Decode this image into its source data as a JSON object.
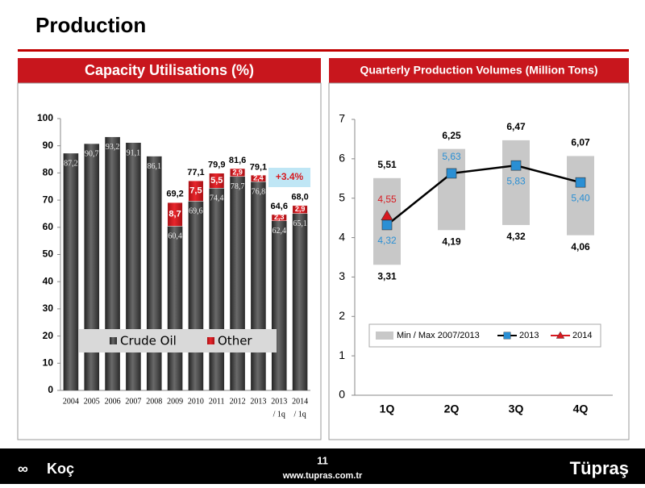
{
  "title": "Production",
  "footer": {
    "page": "11",
    "url": "www.tupras.com.tr",
    "left_logo": "Koç",
    "right_logo": "Tüpraş"
  },
  "chart_data": [
    {
      "type": "bar",
      "stacked": true,
      "title": "Capacity Utilisations (%)",
      "categories": [
        "2004",
        "2005",
        "2006",
        "2007",
        "2008",
        "2009",
        "2010",
        "2011",
        "2012",
        "2013",
        "2013",
        "2014"
      ],
      "category_notes": [
        null,
        null,
        null,
        null,
        null,
        null,
        null,
        null,
        null,
        null,
        "/ 1q",
        "/ 1q"
      ],
      "series": [
        {
          "name": "Crude Oil",
          "color": "#3a3a3a",
          "values": [
            87.2,
            90.7,
            93.2,
            91.1,
            86.1,
            60.4,
            69.6,
            74.4,
            78.7,
            76.8,
            62.4,
            65.1
          ],
          "value_labels": [
            "87,2",
            "90,7",
            "93,2",
            "91,1",
            "86,1",
            "60,4",
            "69,6",
            "74,4",
            "78,7",
            "76,8",
            "62,4",
            "65,1"
          ]
        },
        {
          "name": "Other",
          "color": "#d71920",
          "values": [
            null,
            null,
            null,
            null,
            null,
            8.7,
            7.5,
            5.5,
            2.9,
            2.4,
            2.3,
            2.9
          ],
          "value_labels": [
            null,
            null,
            null,
            null,
            null,
            "8,7",
            "7,5",
            "5,5",
            "2,9",
            "2,4",
            "2,3",
            "2,9"
          ]
        }
      ],
      "totals": {
        "values": [
          null,
          null,
          null,
          null,
          null,
          69.2,
          77.1,
          79.9,
          81.6,
          79.1,
          64.6,
          68.0
        ],
        "value_labels": [
          null,
          null,
          null,
          null,
          null,
          "69,2",
          "77,1",
          "79,9",
          "81,6",
          "79,1",
          "64,6",
          "68,0"
        ]
      },
      "annotation": "+3.4%",
      "ylim": [
        0,
        100
      ],
      "yticks": [
        0,
        10,
        20,
        30,
        40,
        50,
        60,
        70,
        80,
        90,
        100
      ],
      "grid": false,
      "legend": "lower left"
    },
    {
      "type": "line",
      "title": "Quarterly Production Volumes (Million Tons)",
      "categories": [
        "1Q",
        "2Q",
        "3Q",
        "4Q"
      ],
      "range": {
        "name": "Min / Max 2007/2013",
        "color": "#c8c8c8",
        "min": [
          3.31,
          4.19,
          4.32,
          4.06
        ],
        "min_labels": [
          "3,31",
          "4,19",
          "4,32",
          "4,06"
        ],
        "max": [
          5.51,
          6.25,
          6.47,
          6.07
        ],
        "max_labels": [
          "5,51",
          "6,25",
          "6,47",
          "6,07"
        ]
      },
      "series": [
        {
          "name": "2013",
          "color": "#2a8fd4",
          "line_color": "#000000",
          "marker": "square",
          "values": [
            4.32,
            5.63,
            5.83,
            5.4
          ],
          "value_labels": [
            "4,32",
            "5,63",
            "5,83",
            "5,40"
          ]
        },
        {
          "name": "2014",
          "color": "#d71920",
          "line_color": "#d71920",
          "marker": "triangle",
          "values": [
            4.55,
            null,
            null,
            null
          ],
          "value_labels": [
            "4,55",
            null,
            null,
            null
          ]
        }
      ],
      "ylim": [
        0,
        7
      ],
      "yticks": [
        0,
        1,
        2,
        3,
        4,
        5,
        6,
        7
      ],
      "grid": false,
      "legend": "lower center"
    }
  ]
}
